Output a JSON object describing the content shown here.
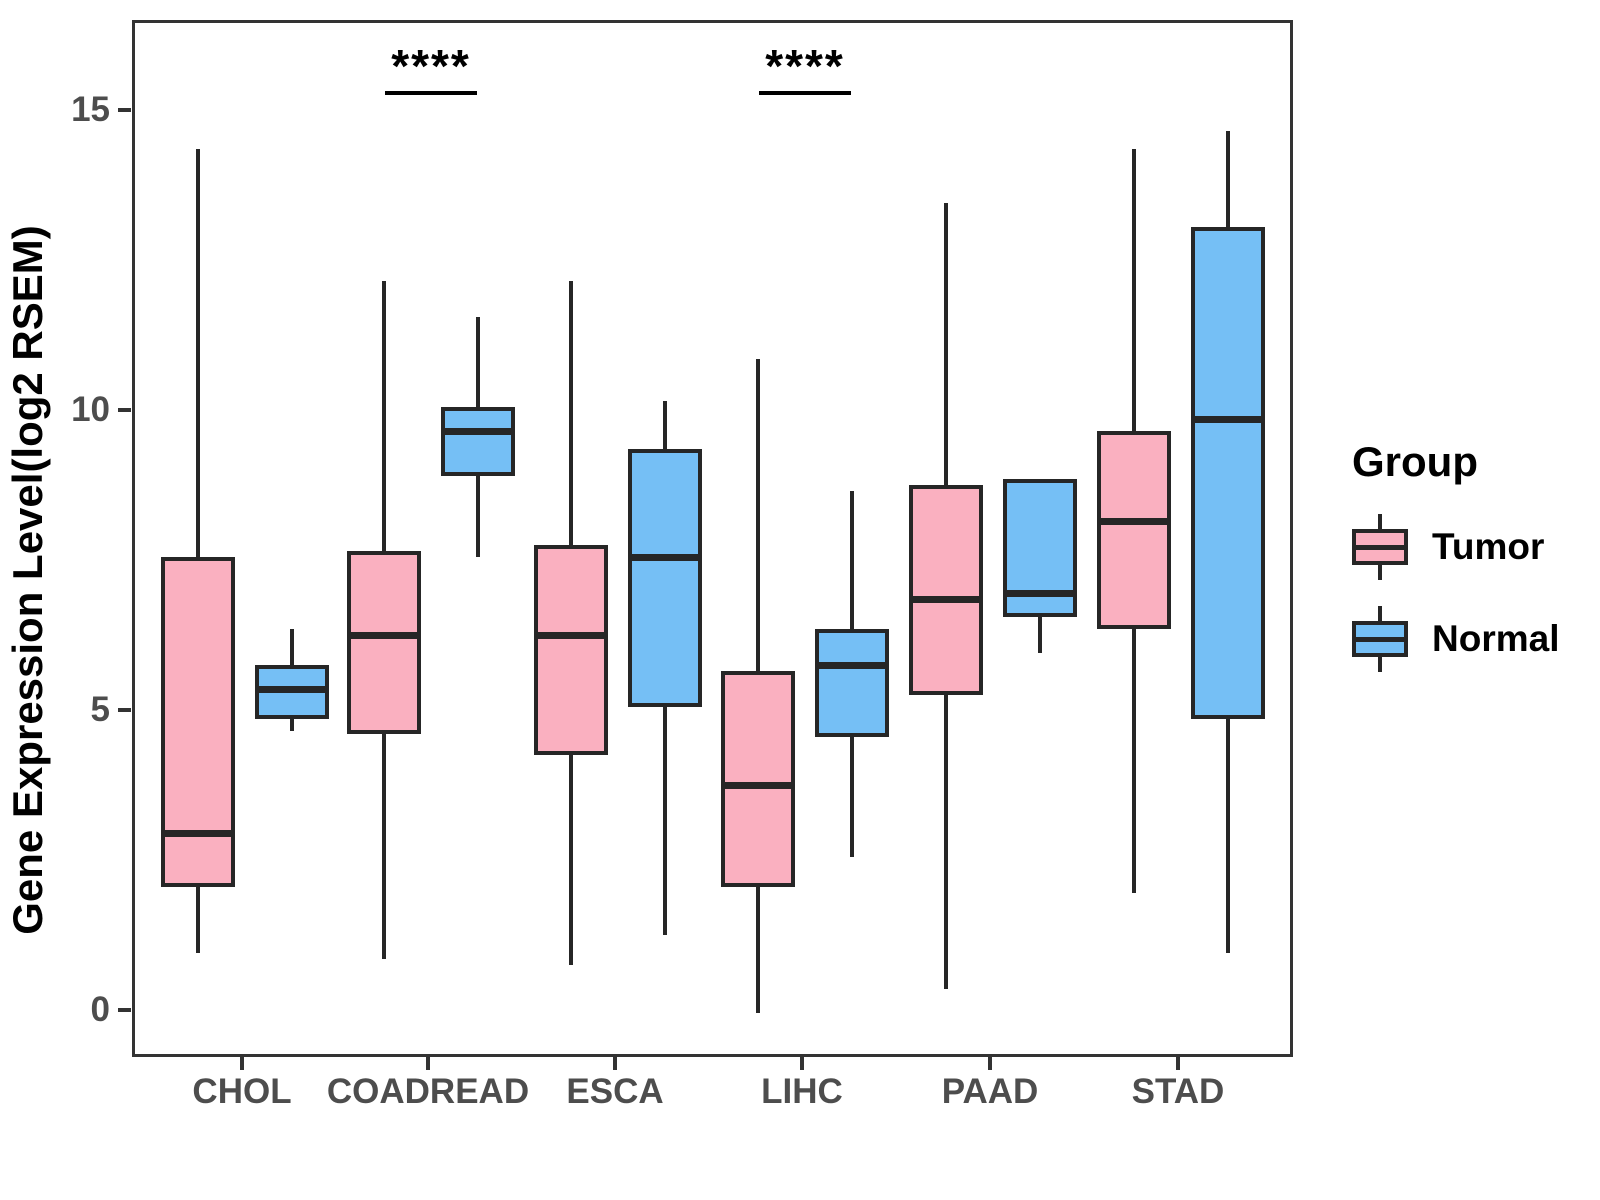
{
  "chart_data": {
    "type": "box",
    "title": "",
    "xlabel": "",
    "ylabel": "Gene Expression Level(log2 RSEM)",
    "categories": [
      "CHOL",
      "COADREAD",
      "ESCA",
      "LIHC",
      "PAAD",
      "STAD"
    ],
    "yticks": [
      0,
      5,
      10,
      15
    ],
    "ylim": [
      -0.8,
      16.5
    ],
    "grid": "off",
    "legend": {
      "title": "Group",
      "position": "right",
      "entries": [
        {
          "label": "Tumor",
          "color": "#FAB0C0"
        },
        {
          "label": "Normal",
          "color": "#75BFF5"
        }
      ]
    },
    "series": [
      {
        "name": "Tumor",
        "color": "#FAB0C0",
        "boxes": [
          {
            "category": "CHOL",
            "min": 1.0,
            "q1": 2.1,
            "median": 3.0,
            "q3": 7.6,
            "max": 14.4
          },
          {
            "category": "COADREAD",
            "min": 0.9,
            "q1": 4.65,
            "median": 6.3,
            "q3": 7.7,
            "max": 12.2
          },
          {
            "category": "ESCA",
            "min": 0.8,
            "q1": 4.3,
            "median": 6.3,
            "q3": 7.8,
            "max": 12.2
          },
          {
            "category": "LIHC",
            "min": 0.0,
            "q1": 2.1,
            "median": 3.8,
            "q3": 5.7,
            "max": 10.9
          },
          {
            "category": "PAAD",
            "min": 0.4,
            "q1": 5.3,
            "median": 6.9,
            "q3": 8.8,
            "max": 13.5
          },
          {
            "category": "STAD",
            "min": 2.0,
            "q1": 6.4,
            "median": 8.2,
            "q3": 9.7,
            "max": 14.4
          }
        ]
      },
      {
        "name": "Normal",
        "color": "#75BFF5",
        "boxes": [
          {
            "category": "CHOL",
            "min": 4.7,
            "q1": 4.9,
            "median": 5.4,
            "q3": 5.8,
            "max": 6.4
          },
          {
            "category": "COADREAD",
            "min": 7.6,
            "q1": 8.95,
            "median": 9.7,
            "q3": 10.1,
            "max": 11.6
          },
          {
            "category": "ESCA",
            "min": 1.3,
            "q1": 5.1,
            "median": 7.6,
            "q3": 9.4,
            "max": 10.2
          },
          {
            "category": "LIHC",
            "min": 2.6,
            "q1": 4.6,
            "median": 5.8,
            "q3": 6.4,
            "max": 8.7
          },
          {
            "category": "PAAD",
            "min": 6.0,
            "q1": 6.6,
            "median": 7.0,
            "q3": 8.9,
            "max": 8.9
          },
          {
            "category": "STAD",
            "min": 1.0,
            "q1": 4.9,
            "median": 9.9,
            "q3": 13.1,
            "max": 14.7
          }
        ]
      }
    ],
    "annotations": [
      {
        "category": "COADREAD",
        "label": "****"
      },
      {
        "category": "LIHC",
        "label": "****"
      }
    ],
    "colors": {
      "tumor_fill": "#FAB0C0",
      "normal_fill": "#75BFF5",
      "line": "#262626",
      "panel_border": "#333333",
      "tick_text": "#4d4d4d",
      "title_text": "#000000"
    }
  }
}
